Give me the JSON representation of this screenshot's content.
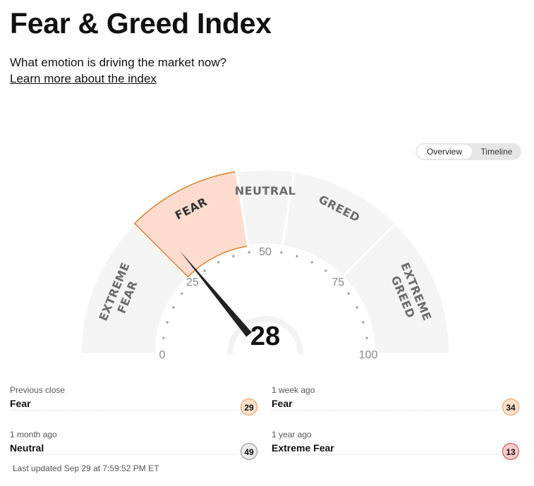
{
  "header": {
    "title": "Fear & Greed Index",
    "subtitle": "What emotion is driving the market now?",
    "learn_more": "Learn more about the index"
  },
  "view_toggle": {
    "overview": "Overview",
    "timeline": "Timeline",
    "selected": "Overview"
  },
  "gauge": {
    "value": 28,
    "value_text": "28",
    "current_zone": "FEAR",
    "zones": [
      {
        "lines": [
          "EXTREME",
          "FEAR"
        ],
        "range": [
          0,
          25
        ]
      },
      {
        "lines": [
          "FEAR"
        ],
        "range": [
          25,
          45
        ]
      },
      {
        "lines": [
          "NEUTRAL"
        ],
        "range": [
          45,
          55
        ]
      },
      {
        "lines": [
          "GREED"
        ],
        "range": [
          55,
          75
        ]
      },
      {
        "lines": [
          "EXTREME",
          "GREED"
        ],
        "range": [
          75,
          100
        ]
      }
    ],
    "tick_labels": [
      "0",
      "25",
      "50",
      "75",
      "100"
    ],
    "colors": {
      "zone": "#f4f4f4",
      "active_fill": "#fddccf",
      "active_stroke": "#d9822b",
      "needle": "#222222"
    }
  },
  "stats": [
    {
      "caption": "Previous close",
      "label": "Fear",
      "value": "29",
      "badge_bg": "#fde0cc",
      "badge_border": "#e8954f"
    },
    {
      "caption": "1 week ago",
      "label": "Fear",
      "value": "34",
      "badge_bg": "#fde0cc",
      "badge_border": "#e8954f"
    },
    {
      "caption": "1 month ago",
      "label": "Neutral",
      "value": "49",
      "badge_bg": "#ebebeb",
      "badge_border": "#8a8a8a"
    },
    {
      "caption": "1 year ago",
      "label": "Extreme Fear",
      "value": "13",
      "badge_bg": "#f9caca",
      "badge_border": "#c94040"
    }
  ],
  "last_updated": "Last updated Sep 29 at 7:59:52 PM ET"
}
